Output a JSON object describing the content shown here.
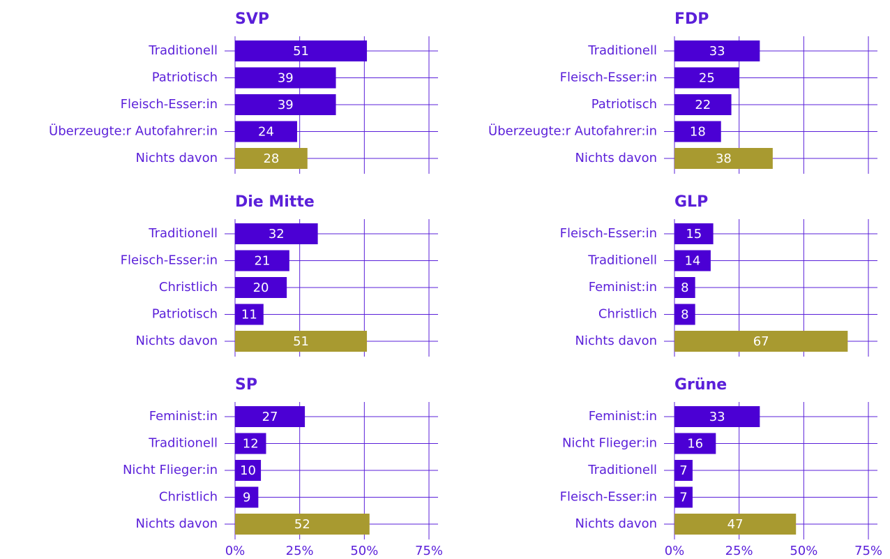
{
  "chart_data": [
    {
      "type": "bar",
      "title": "SVP",
      "categories": [
        "Traditionell",
        "Patriotisch",
        "Fleisch-Esser:in",
        "Überzeugte:r Autofahrer:in",
        "Nichts davon"
      ],
      "values": [
        51,
        39,
        39,
        24,
        28
      ],
      "colors": [
        "#4b00d4",
        "#4b00d4",
        "#4b00d4",
        "#4b00d4",
        "#a89a30"
      ],
      "xlim": [
        0,
        78.5
      ],
      "xticks": [
        0,
        25,
        50,
        75
      ]
    },
    {
      "type": "bar",
      "title": "FDP",
      "categories": [
        "Traditionell",
        "Fleisch-Esser:in",
        "Patriotisch",
        "Überzeugte:r Autofahrer:in",
        "Nichts davon"
      ],
      "values": [
        33,
        25,
        22,
        18,
        38
      ],
      "colors": [
        "#4b00d4",
        "#4b00d4",
        "#4b00d4",
        "#4b00d4",
        "#a89a30"
      ],
      "xlim": [
        0,
        78.5
      ],
      "xticks": [
        0,
        25,
        50,
        75
      ]
    },
    {
      "type": "bar",
      "title": "Die Mitte",
      "categories": [
        "Traditionell",
        "Fleisch-Esser:in",
        "Christlich",
        "Patriotisch",
        "Nichts davon"
      ],
      "values": [
        32,
        21,
        20,
        11,
        51
      ],
      "colors": [
        "#4b00d4",
        "#4b00d4",
        "#4b00d4",
        "#4b00d4",
        "#a89a30"
      ],
      "xlim": [
        0,
        78.5
      ],
      "xticks": [
        0,
        25,
        50,
        75
      ]
    },
    {
      "type": "bar",
      "title": "GLP",
      "categories": [
        "Fleisch-Esser:in",
        "Traditionell",
        "Feminist:in",
        "Christlich",
        "Nichts davon"
      ],
      "values": [
        15,
        14,
        8,
        8,
        67
      ],
      "colors": [
        "#4b00d4",
        "#4b00d4",
        "#4b00d4",
        "#4b00d4",
        "#a89a30"
      ],
      "xlim": [
        0,
        78.5
      ],
      "xticks": [
        0,
        25,
        50,
        75
      ]
    },
    {
      "type": "bar",
      "title": "SP",
      "categories": [
        "Feminist:in",
        "Traditionell",
        "Nicht Flieger:in",
        "Christlich",
        "Nichts davon"
      ],
      "values": [
        27,
        12,
        10,
        9,
        52
      ],
      "colors": [
        "#4b00d4",
        "#4b00d4",
        "#4b00d4",
        "#4b00d4",
        "#a89a30"
      ],
      "xlim": [
        0,
        78.5
      ],
      "xticks": [
        {
          "value": 0,
          "label": "0%"
        },
        {
          "value": 25,
          "label": "25%"
        },
        {
          "value": 50,
          "label": "50%"
        },
        {
          "value": 75,
          "label": "75%"
        }
      ]
    },
    {
      "type": "bar",
      "title": "Grüne",
      "categories": [
        "Feminist:in",
        "Nicht Flieger:in",
        "Traditionell",
        "Fleisch-Esser:in",
        "Nichts davon"
      ],
      "values": [
        33,
        16,
        7,
        7,
        47
      ],
      "colors": [
        "#4b00d4",
        "#4b00d4",
        "#4b00d4",
        "#4b00d4",
        "#a89a30"
      ],
      "xlim": [
        0,
        78.5
      ],
      "xticks": [
        {
          "value": 0,
          "label": "0%"
        },
        {
          "value": 25,
          "label": "25%"
        },
        {
          "value": 50,
          "label": "50%"
        },
        {
          "value": 75,
          "label": "75%"
        }
      ]
    }
  ]
}
